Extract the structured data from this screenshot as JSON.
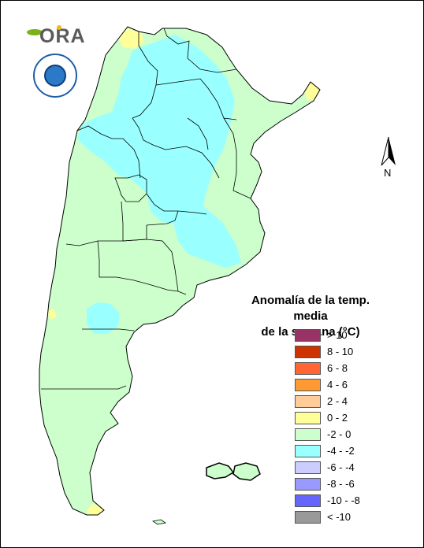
{
  "map": {
    "title_line1": "Anomalía de la temp. media",
    "title_line2": "de la semana (°C)",
    "north_label": "N",
    "logos": {
      "ora_text": "ORA"
    },
    "legend": [
      {
        "label": "> 10",
        "color": "#993366"
      },
      {
        "label": "8 - 10",
        "color": "#cc3300"
      },
      {
        "label": "6 - 8",
        "color": "#ff6633"
      },
      {
        "label": "4 - 6",
        "color": "#ff9933"
      },
      {
        "label": "2 - 4",
        "color": "#ffcc99"
      },
      {
        "label": "0 - 2",
        "color": "#ffff99"
      },
      {
        "label": "-2 - 0",
        "color": "#ccffcc"
      },
      {
        "label": "-4 - -2",
        "color": "#99ffff"
      },
      {
        "label": "-6 - -4",
        "color": "#ccccff"
      },
      {
        "label": "-8 - -6",
        "color": "#9999ff"
      },
      {
        "label": "-10 - -8",
        "color": "#6666ff"
      },
      {
        "label": "< -10",
        "color": "#999999"
      }
    ],
    "colors": {
      "land_default": "#ccffcc",
      "cold_anomaly": "#99ffff",
      "warm_anomaly": "#ffff99",
      "border": "#000000"
    }
  }
}
